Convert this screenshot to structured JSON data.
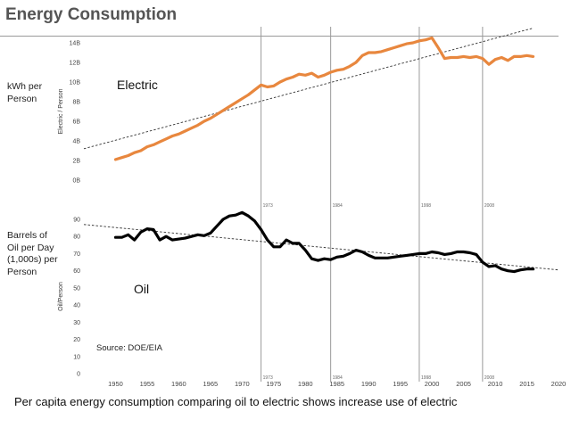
{
  "page": {
    "title": "Energy Consumption",
    "caption": "Per capita energy consumption comparing oil to electric shows increase use of  electric",
    "source": "Source: DOE/EIA"
  },
  "colors": {
    "electric": "#e8873e",
    "oil": "#000000",
    "trend": "#333333",
    "event_line": "#9a9a9a",
    "title": "#555555"
  },
  "chart_data": [
    {
      "type": "line",
      "name": "electric-panel",
      "title": "",
      "side_label": "kWh per Person",
      "ylabel": "Electric / Person",
      "series_label": "Electric",
      "xlim": [
        1945,
        2020
      ],
      "ylim": [
        0,
        14
      ],
      "yticks": [
        {
          "v": 0,
          "label": "0B"
        },
        {
          "v": 2,
          "label": "2B"
        },
        {
          "v": 4,
          "label": "4B"
        },
        {
          "v": 6,
          "label": "6B"
        },
        {
          "v": 8,
          "label": "8B"
        },
        {
          "v": 10,
          "label": "10B"
        },
        {
          "v": 12,
          "label": "12B"
        },
        {
          "v": 14,
          "label": "14B"
        }
      ],
      "series": [
        {
          "x": [
            1950,
            1951,
            1952,
            1953,
            1954,
            1955,
            1956,
            1957,
            1958,
            1959,
            1960,
            1961,
            1962,
            1963,
            1964,
            1965,
            1966,
            1967,
            1968,
            1969,
            1970,
            1971,
            1972,
            1973,
            1974,
            1975,
            1976,
            1977,
            1978,
            1979,
            1980,
            1981,
            1982,
            1983,
            1984,
            1985,
            1986,
            1987,
            1988,
            1989,
            1990,
            1991,
            1992,
            1993,
            1994,
            1995,
            1996,
            1997,
            1998,
            1999,
            2000,
            2001,
            2002,
            2003,
            2004,
            2005,
            2006,
            2007,
            2008,
            2009,
            2010,
            2011,
            2012,
            2013,
            2014,
            2015,
            2016
          ],
          "values": [
            2.1,
            2.3,
            2.5,
            2.8,
            3.0,
            3.4,
            3.6,
            3.9,
            4.2,
            4.5,
            4.7,
            5.0,
            5.3,
            5.6,
            6.0,
            6.3,
            6.7,
            7.1,
            7.5,
            7.9,
            8.3,
            8.7,
            9.2,
            9.7,
            9.5,
            9.6,
            10.0,
            10.3,
            10.5,
            10.8,
            10.7,
            10.9,
            10.5,
            10.7,
            11.0,
            11.2,
            11.3,
            11.6,
            12.0,
            12.7,
            13.0,
            13.0,
            13.1,
            13.3,
            13.5,
            13.7,
            13.9,
            14.0,
            14.2,
            14.3,
            14.5,
            13.5,
            12.4,
            12.5,
            12.5,
            12.6,
            12.5,
            12.6,
            12.4,
            11.8,
            12.3,
            12.5,
            12.2,
            12.6,
            12.6,
            12.7,
            12.6
          ]
        }
      ],
      "trendline": {
        "x": [
          1945,
          2016
        ],
        "values": [
          3.2,
          15.5
        ]
      }
    },
    {
      "type": "line",
      "name": "oil-panel",
      "title": "",
      "side_label": "Barrels of Oil per Day (1,000s) per Person",
      "ylabel": "Oil/Person",
      "series_label": "Oil",
      "xlabel": "",
      "xlim": [
        1945,
        2020
      ],
      "ylim": [
        0,
        90
      ],
      "yticks": [
        {
          "v": 0,
          "label": "0"
        },
        {
          "v": 10,
          "label": "10"
        },
        {
          "v": 20,
          "label": "20"
        },
        {
          "v": 30,
          "label": "30"
        },
        {
          "v": 40,
          "label": "40"
        },
        {
          "v": 50,
          "label": "50"
        },
        {
          "v": 60,
          "label": "60"
        },
        {
          "v": 70,
          "label": "70"
        },
        {
          "v": 80,
          "label": "80"
        },
        {
          "v": 90,
          "label": "90"
        }
      ],
      "xticks": [
        1950,
        1955,
        1960,
        1965,
        1970,
        1975,
        1980,
        1985,
        1990,
        1995,
        2000,
        2005,
        2010,
        2015,
        2020
      ],
      "series": [
        {
          "x": [
            1950,
            1951,
            1952,
            1953,
            1954,
            1955,
            1956,
            1957,
            1958,
            1959,
            1960,
            1961,
            1962,
            1963,
            1964,
            1965,
            1966,
            1967,
            1968,
            1969,
            1970,
            1971,
            1972,
            1973,
            1974,
            1975,
            1976,
            1977,
            1978,
            1979,
            1980,
            1981,
            1982,
            1983,
            1984,
            1985,
            1986,
            1987,
            1988,
            1989,
            1990,
            1991,
            1992,
            1993,
            1994,
            1995,
            1996,
            1997,
            1998,
            1999,
            2000,
            2001,
            2002,
            2003,
            2004,
            2005,
            2006,
            2007,
            2008,
            2009,
            2010,
            2011,
            2012,
            2013,
            2014,
            2015,
            2016
          ],
          "values": [
            79.5,
            79.5,
            81,
            78,
            82.5,
            84.5,
            84,
            78,
            80,
            78,
            78.5,
            79,
            80,
            81,
            80.5,
            82,
            86,
            90,
            92,
            92.5,
            94,
            92,
            89,
            84,
            78,
            74,
            74,
            78,
            76,
            76,
            72,
            67,
            66,
            67,
            66.5,
            68,
            68.5,
            70,
            72,
            71,
            69,
            67.5,
            67.5,
            67.5,
            68,
            68.5,
            69,
            69.5,
            70,
            70,
            71,
            70.5,
            69.5,
            70,
            71,
            71,
            70.5,
            69.5,
            65,
            62.5,
            63,
            61,
            60,
            59.5,
            60.5,
            61,
            61
          ]
        }
      ],
      "trendline": {
        "x": [
          1945,
          2020
        ],
        "values": [
          87,
          60.5
        ]
      }
    }
  ],
  "events": [
    {
      "year": 1973,
      "label": "1973"
    },
    {
      "year": 1984,
      "label": "1984"
    },
    {
      "year": 1998,
      "label": "1998"
    },
    {
      "year": 2008,
      "label": "2008"
    }
  ]
}
